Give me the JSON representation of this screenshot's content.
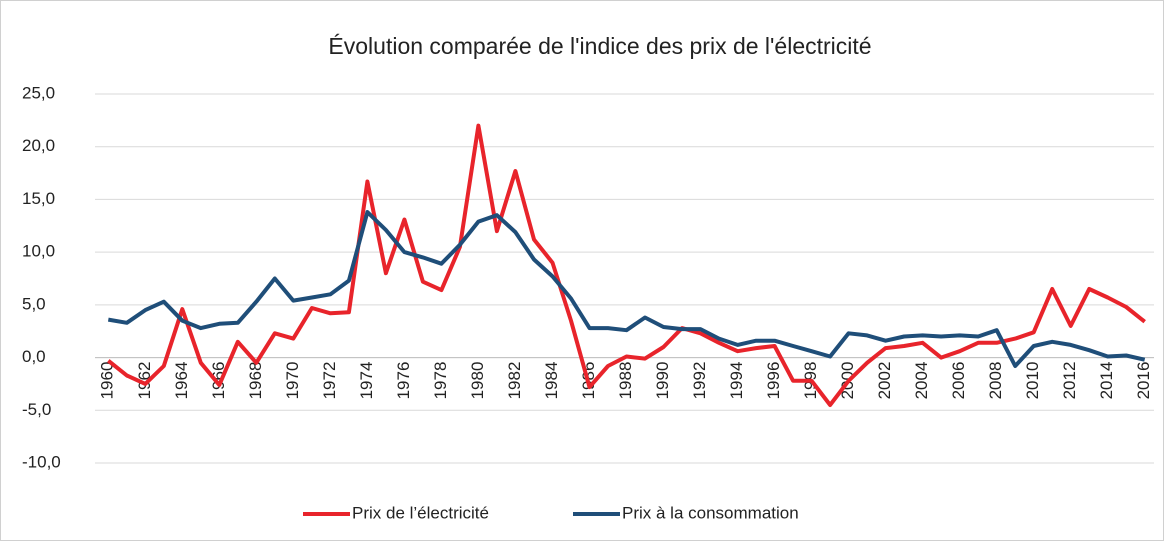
{
  "chart_data": {
    "type": "line",
    "title": "Évolution comparée de l'indice des prix de l'électricité",
    "categories": [
      "1960",
      null,
      "1962",
      null,
      "1964",
      null,
      "1966",
      null,
      "1968",
      null,
      "1970",
      null,
      "1972",
      null,
      "1974",
      null,
      "1976",
      null,
      "1978",
      null,
      "1980",
      null,
      "1982",
      null,
      "1984",
      null,
      "1986",
      null,
      "1988",
      null,
      "1990",
      null,
      "1992",
      null,
      "1994",
      null,
      "1996",
      null,
      "1998",
      null,
      "2000",
      null,
      "2002",
      null,
      "2004",
      null,
      "2006",
      null,
      "2008",
      null,
      "2010",
      null,
      "2012",
      null,
      "2014",
      null,
      "2016"
    ],
    "series": [
      {
        "name": "Prix de l’électricité",
        "color": "#e8242b",
        "values": [
          -0.3,
          -1.7,
          -2.5,
          -0.8,
          4.6,
          -0.5,
          -2.6,
          1.5,
          -0.5,
          2.3,
          1.8,
          4.7,
          4.2,
          4.3,
          16.7,
          8.0,
          13.1,
          7.2,
          6.4,
          10.5,
          22.0,
          12.0,
          17.7,
          11.2,
          9.0,
          3.5,
          -2.8,
          -0.8,
          0.1,
          -0.1,
          1.0,
          2.8,
          2.3,
          1.4,
          0.6,
          0.9,
          1.1,
          -2.2,
          -2.2,
          -4.5,
          -2.2,
          -0.5,
          0.9,
          1.1,
          1.4,
          0.0,
          0.6,
          1.4,
          1.4,
          1.8,
          2.4,
          6.5,
          3.0,
          6.5,
          5.7,
          4.8,
          3.4
        ]
      },
      {
        "name": "Prix à la consommation",
        "color": "#1f4e79",
        "values": [
          3.6,
          3.3,
          4.5,
          5.3,
          3.5,
          2.8,
          3.2,
          3.3,
          5.3,
          7.5,
          5.4,
          5.7,
          6.0,
          7.3,
          13.8,
          12.1,
          10.0,
          9.5,
          8.9,
          10.7,
          12.9,
          13.5,
          11.9,
          9.3,
          7.7,
          5.6,
          2.8,
          2.8,
          2.6,
          3.8,
          2.9,
          2.7,
          2.7,
          1.8,
          1.2,
          1.6,
          1.6,
          1.1,
          0.6,
          0.1,
          2.3,
          2.1,
          1.6,
          2.0,
          2.1,
          2.0,
          2.1,
          2.0,
          2.6,
          -0.8,
          1.1,
          1.5,
          1.2,
          0.7,
          0.1,
          0.2,
          -0.2
        ]
      }
    ],
    "ylim": [
      -10,
      25
    ],
    "yticks": [
      {
        "value": -10,
        "label": "-10,0"
      },
      {
        "value": -5,
        "label": "-5,0"
      },
      {
        "value": 0,
        "label": "0,0"
      },
      {
        "value": 5,
        "label": "5,0"
      },
      {
        "value": 10,
        "label": "10,0"
      },
      {
        "value": 15,
        "label": "15,0"
      },
      {
        "value": 20,
        "label": "20,0"
      },
      {
        "value": 25,
        "label": "25,0"
      }
    ],
    "grid": true,
    "legend": "bottom"
  }
}
